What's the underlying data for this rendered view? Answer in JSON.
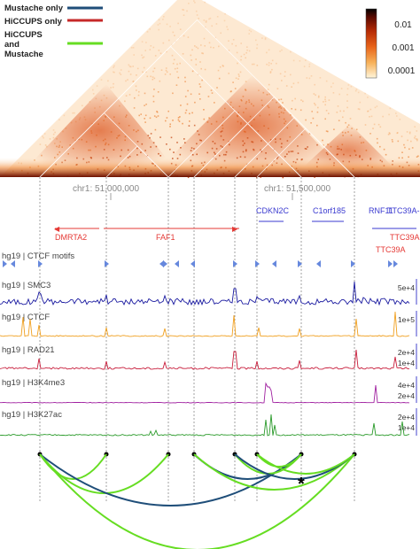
{
  "legend": {
    "items": [
      {
        "label": "Mustache only",
        "color": "#1f4e79"
      },
      {
        "label": "HiCCUPS only",
        "color": "#c62828"
      },
      {
        "label": "HiCCUPS\nand\nMustache",
        "color": "#66dd22"
      }
    ]
  },
  "colorbar": {
    "ticks": [
      "0.01",
      "0.001",
      "0.0001"
    ],
    "colors": [
      "#000000",
      "#5a0a00",
      "#b52a05",
      "#e8641a",
      "#f7b25a",
      "#fff6dc"
    ]
  },
  "coords": {
    "left_label": "chr1: 51,000,000",
    "right_label": "chr1: 51,500,000"
  },
  "genes": {
    "dmrta2": "DMRTA2",
    "faf1": "FAF1",
    "cdkn2c": "CDKN2C",
    "c1orf185": "C1orf185",
    "rnf11": "RNF11",
    "ttc39a_top": "TTC39A-",
    "ttc39a_red": "TTC39A",
    "ttc39a_bottom": "TTC39A"
  },
  "tracks": [
    {
      "label": "hg19 | CTCF motifs",
      "color": "#6688dd",
      "scale": []
    },
    {
      "label": "hg19 | SMC3",
      "color": "#1a1aa0",
      "scale": [
        "5e+4"
      ]
    },
    {
      "label": "hg19 | CTCF",
      "color": "#f0a020",
      "scale": [
        "1e+5"
      ]
    },
    {
      "label": "hg19 | RAD21",
      "color": "#c81e3c",
      "scale": [
        "2e+4",
        "1e+4"
      ]
    },
    {
      "label": "hg19 | H3K4me3",
      "color": "#a020a0",
      "scale": [
        "4e+4",
        "2e+4"
      ]
    },
    {
      "label": "hg19 | H3K27ac",
      "color": "#2a9a2a",
      "scale": [
        "2e+4",
        "1e+4"
      ]
    }
  ],
  "asterisk": "*",
  "colors": {
    "mustache_only": "#1f4e79",
    "hiccups_only": "#c62828",
    "both": "#66dd22",
    "gene_red": "#e53935",
    "gene_blue": "#3a3ad0"
  }
}
